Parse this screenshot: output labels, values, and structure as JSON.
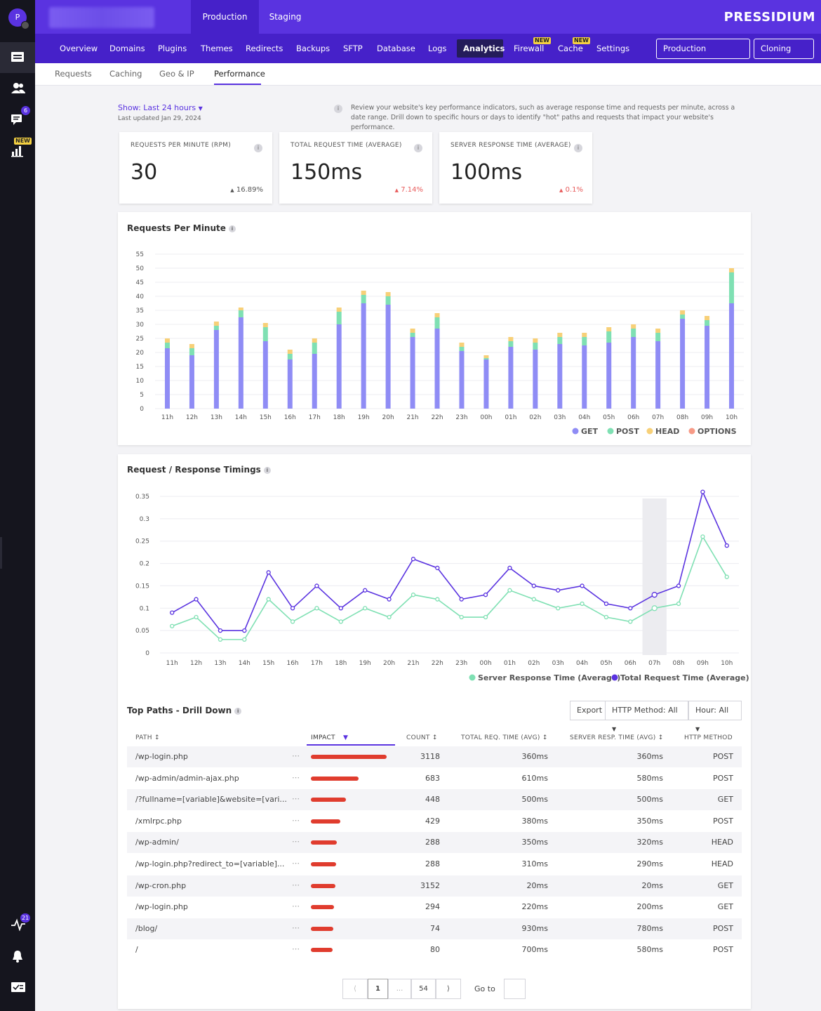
{
  "user": {
    "avatar_letter": "P"
  },
  "rail": {
    "comments_badge": "6",
    "analytics_badge": "NEW",
    "activity_badge": "21"
  },
  "env_tabs": [
    "Production",
    "Staging"
  ],
  "brand": {
    "logo_bold": "PRESSIDIUM",
    "accent": "#5a33e0"
  },
  "nav": {
    "items": [
      "Overview",
      "Domains",
      "Plugins",
      "Themes",
      "Redirects",
      "Backups",
      "SFTP",
      "Database",
      "Logs",
      "Analytics",
      "Firewall",
      "Cache",
      "Settings"
    ],
    "new_label": "NEW",
    "buttons": [
      "Production operations",
      "Cloning Tool"
    ]
  },
  "subtabs": [
    "Requests",
    "Caching",
    "Geo & IP",
    "Performance"
  ],
  "header": {
    "show": "Show: Last 24 hours",
    "updated": "Last updated Jan 29, 2024",
    "info": "Review your website's key performance indicators, such as average response time and requests per minute, across a date range. Drill down to specific hours or days to identify \"hot\" paths and requests that impact your website's performance."
  },
  "kpis": [
    {
      "label": "REQUESTS PER MINUTE (RPM)",
      "value": "30",
      "delta": "16.89%",
      "direction": "up",
      "color": "#555555"
    },
    {
      "label": "TOTAL REQUEST TIME (AVERAGE)",
      "value": "150ms",
      "delta": "7.14%",
      "direction": "up",
      "color": "#e85c5c"
    },
    {
      "label": "SERVER RESPONSE TIME (AVERAGE)",
      "value": "100ms",
      "delta": "0.1%",
      "direction": "up",
      "color": "#e85c5c"
    }
  ],
  "chart_data": [
    {
      "type": "bar",
      "stacked": true,
      "title": "Requests Per Minute",
      "categories": [
        "11h",
        "12h",
        "13h",
        "14h",
        "15h",
        "16h",
        "17h",
        "18h",
        "19h",
        "20h",
        "21h",
        "22h",
        "23h",
        "00h",
        "01h",
        "02h",
        "03h",
        "04h",
        "05h",
        "06h",
        "07h",
        "08h",
        "09h",
        "10h"
      ],
      "yticks": [
        0,
        5,
        10,
        15,
        20,
        25,
        30,
        35,
        40,
        45,
        50,
        55
      ],
      "ylim": [
        0,
        55
      ],
      "grid": true,
      "legend": "bottom-right",
      "series": [
        {
          "name": "GET",
          "color": "#8f8cf5",
          "values": [
            21.5,
            19,
            28,
            32.5,
            24,
            17.5,
            19.5,
            30,
            37.5,
            37,
            25.5,
            28.5,
            20.5,
            17.5,
            22,
            21,
            23,
            22.5,
            23.5,
            25.5,
            24,
            32,
            29.5,
            37.5
          ]
        },
        {
          "name": "POST",
          "color": "#7fe0b3",
          "values": [
            2,
            2.5,
            1.5,
            2.5,
            5,
            2,
            4,
            4.5,
            3,
            3,
            1.5,
            4,
            1.5,
            0.5,
            2,
            2.5,
            2.5,
            3,
            4,
            3,
            3,
            1.5,
            2,
            11
          ]
        },
        {
          "name": "HEAD",
          "color": "#f7d078",
          "values": [
            1.5,
            1.5,
            1.5,
            1,
            1.5,
            1.5,
            1.5,
            1.5,
            1.5,
            1.5,
            1.5,
            1.5,
            1.5,
            1,
            1.5,
            1.5,
            1.5,
            1.5,
            1.5,
            1.5,
            1.5,
            1.5,
            1.5,
            1.5
          ]
        },
        {
          "name": "OPTIONS",
          "color": "#f79a86",
          "values": [
            0,
            0,
            0,
            0,
            0,
            0,
            0,
            0,
            0,
            0,
            0,
            0,
            0,
            0,
            0,
            0,
            0,
            0,
            0,
            0,
            0,
            0,
            0,
            0
          ]
        }
      ]
    },
    {
      "type": "line",
      "title": "Request / Response Timings",
      "categories": [
        "11h",
        "12h",
        "13h",
        "14h",
        "15h",
        "16h",
        "17h",
        "18h",
        "19h",
        "20h",
        "21h",
        "22h",
        "23h",
        "00h",
        "01h",
        "02h",
        "03h",
        "04h",
        "05h",
        "06h",
        "07h",
        "08h",
        "09h",
        "10h"
      ],
      "yticks": [
        "0",
        "0.05",
        "0.1",
        "0.15",
        "0.2",
        "0.25",
        "0.3",
        "0.35"
      ],
      "ylim": [
        0,
        0.35
      ],
      "grid": true,
      "highlight_category": "07h",
      "legend": "bottom-right",
      "series": [
        {
          "name": "Server Response Time (Average)",
          "color": "#7fe0b3",
          "values": [
            0.06,
            0.08,
            0.03,
            0.03,
            0.12,
            0.07,
            0.1,
            0.07,
            0.1,
            0.08,
            0.13,
            0.12,
            0.08,
            0.08,
            0.14,
            0.12,
            0.1,
            0.11,
            0.08,
            0.07,
            0.1,
            0.11,
            0.26,
            0.17
          ]
        },
        {
          "name": "Total Request Time (Average)",
          "color": "#5a33e0",
          "values": [
            0.09,
            0.12,
            0.05,
            0.05,
            0.18,
            0.1,
            0.15,
            0.1,
            0.14,
            0.12,
            0.21,
            0.19,
            0.12,
            0.13,
            0.19,
            0.15,
            0.14,
            0.15,
            0.11,
            0.1,
            0.13,
            0.15,
            0.36,
            0.24
          ]
        }
      ]
    }
  ],
  "table": {
    "title": "Top Paths - Drill Down",
    "buttons": [
      "Export",
      "HTTP Method: All",
      "Hour: All"
    ],
    "columns": [
      "PATH",
      "IMPACT",
      "COUNT",
      "TOTAL REQ. TIME (AVG)",
      "SERVER RESP. TIME (AVG)",
      "HTTP METHOD"
    ],
    "rows": [
      {
        "path": "/wp-login.php",
        "impact": 1.0,
        "count": "3118",
        "total": "360ms",
        "server": "360ms",
        "method": "POST"
      },
      {
        "path": "/wp-admin/admin-ajax.php",
        "impact": 0.63,
        "count": "683",
        "total": "610ms",
        "server": "580ms",
        "method": "POST"
      },
      {
        "path": "/?fullname=[variable]&website=[vari...",
        "impact": 0.46,
        "count": "448",
        "total": "500ms",
        "server": "500ms",
        "method": "GET"
      },
      {
        "path": "/xmlrpc.php",
        "impact": 0.39,
        "count": "429",
        "total": "380ms",
        "server": "350ms",
        "method": "POST"
      },
      {
        "path": "/wp-admin/",
        "impact": 0.34,
        "count": "288",
        "total": "350ms",
        "server": "320ms",
        "method": "HEAD"
      },
      {
        "path": "/wp-login.php?redirect_to=[variable]...",
        "impact": 0.33,
        "count": "288",
        "total": "310ms",
        "server": "290ms",
        "method": "HEAD"
      },
      {
        "path": "/wp-cron.php",
        "impact": 0.32,
        "count": "3152",
        "total": "20ms",
        "server": "20ms",
        "method": "GET"
      },
      {
        "path": "/wp-login.php",
        "impact": 0.31,
        "count": "294",
        "total": "220ms",
        "server": "200ms",
        "method": "GET"
      },
      {
        "path": "/blog/",
        "impact": 0.3,
        "count": "74",
        "total": "930ms",
        "server": "780ms",
        "method": "POST"
      },
      {
        "path": "/",
        "impact": 0.29,
        "count": "80",
        "total": "700ms",
        "server": "580ms",
        "method": "POST"
      }
    ]
  },
  "pagination": {
    "current": "1",
    "ellipsis": "...",
    "last": "54",
    "goto_label": "Go to"
  }
}
